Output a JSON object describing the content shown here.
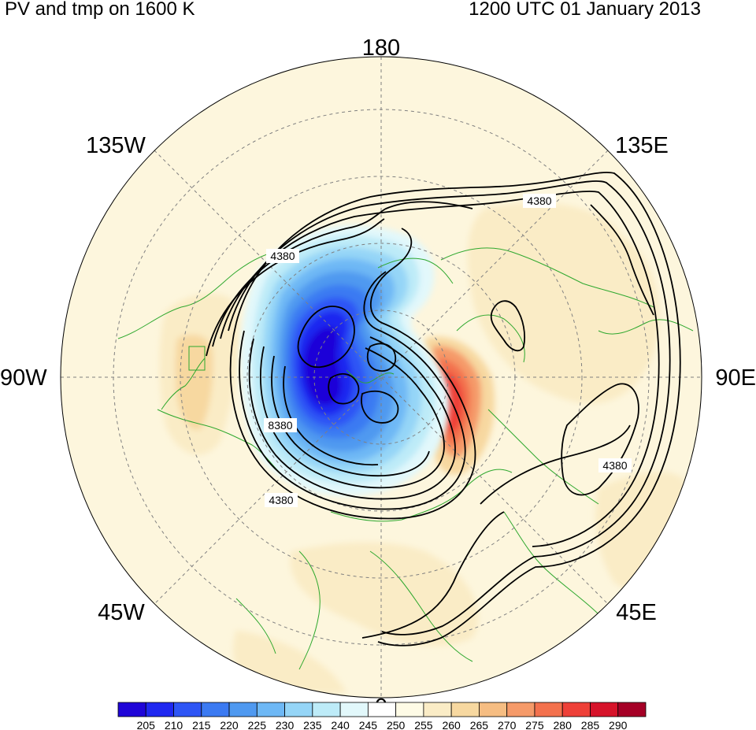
{
  "header": {
    "title_left": "PV and tmp on 1600 K",
    "title_right": "1200 UTC 01 January 2013"
  },
  "longitude_labels": [
    {
      "id": "lon-180",
      "text": "180"
    },
    {
      "id": "lon-135e",
      "text": "135E"
    },
    {
      "id": "lon-90e",
      "text": "90E"
    },
    {
      "id": "lon-45e",
      "text": "45E"
    },
    {
      "id": "lon-0",
      "text": "0"
    },
    {
      "id": "lon-45w",
      "text": "45W"
    },
    {
      "id": "lon-90w",
      "text": "90W"
    },
    {
      "id": "lon-135w",
      "text": "135W"
    }
  ],
  "contour_labels": [
    "4380",
    "4380",
    "8380",
    "4380",
    "4380"
  ],
  "colorbar": {
    "values": [
      "205",
      "210",
      "215",
      "220",
      "225",
      "230",
      "235",
      "240",
      "245",
      "250",
      "255",
      "260",
      "265",
      "270",
      "275",
      "280",
      "285",
      "290"
    ],
    "colors": [
      "#1f05d8",
      "#1f28f0",
      "#2e55f5",
      "#3b7af2",
      "#4f99f0",
      "#6eb8f5",
      "#95d5f7",
      "#bdebf8",
      "#e2f8fb",
      "#ffffff",
      "#fefbe6",
      "#faecc6",
      "#f7d8a0",
      "#f6bd82",
      "#f59a69",
      "#f3714d",
      "#ee4038",
      "#d6132a",
      "#a50026"
    ]
  },
  "colors": {
    "background_fill": "#fdf6dd",
    "coastline": "#2ea82e",
    "contour": "#000000",
    "grid": "#808080"
  }
}
